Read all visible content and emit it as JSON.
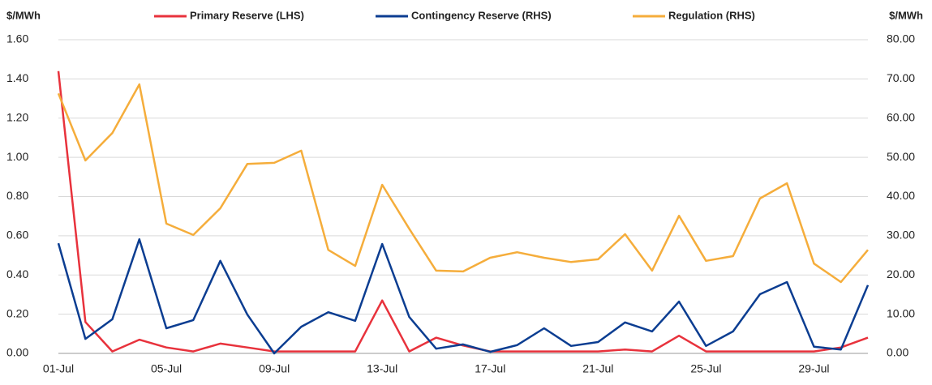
{
  "chart_data": {
    "type": "line",
    "y_label": "$/MWh",
    "y2_label": "$/MWh",
    "categories": [
      "01-Jul",
      null,
      null,
      null,
      "05-Jul",
      null,
      null,
      null,
      "09-Jul",
      null,
      null,
      null,
      "13-Jul",
      null,
      null,
      null,
      "17-Jul",
      null,
      null,
      null,
      "21-Jul",
      null,
      null,
      null,
      "25-Jul",
      null,
      null,
      null,
      "29-Jul",
      null,
      null
    ],
    "series": [
      {
        "name": "Primary Reserve (LHS)",
        "color": "#e8323c",
        "axis": "y",
        "values": [
          1.44,
          0.16,
          0.01,
          0.07,
          0.03,
          0.01,
          0.05,
          0.03,
          0.01,
          0.01,
          0.01,
          0.01,
          0.27,
          0.01,
          0.08,
          0.04,
          0.01,
          0.01,
          0.01,
          0.01,
          0.01,
          0.02,
          0.01,
          0.09,
          0.01,
          0.01,
          0.01,
          0.01,
          0.01,
          0.03,
          0.08
        ]
      },
      {
        "name": "Contingency Reserve (RHS)",
        "color": "#0b3d91",
        "axis": "y2",
        "values": [
          28.1,
          3.7,
          8.7,
          29.1,
          6.4,
          8.5,
          23.6,
          9.9,
          0,
          6.8,
          10.5,
          8.3,
          27.9,
          9.3,
          1.2,
          2.3,
          0.4,
          2.1,
          6.4,
          1.9,
          2.9,
          7.9,
          5.6,
          13.2,
          1.9,
          5.6,
          15.1,
          18.2,
          1.7,
          1.0,
          17.4
        ]
      },
      {
        "name": "Regulation (RHS)",
        "color": "#f5ad3b",
        "axis": "y2",
        "values": [
          66.3,
          49.2,
          56.2,
          68.6,
          33.1,
          30.2,
          37.0,
          48.3,
          48.6,
          51.7,
          26.4,
          22.3,
          43.0,
          31.8,
          21.1,
          20.9,
          24.4,
          25.8,
          24.4,
          23.3,
          24.0,
          30.4,
          21.1,
          35.1,
          23.6,
          24.8,
          39.5,
          43.4,
          22.9,
          18.2,
          26.4
        ]
      }
    ],
    "ylim": [
      0,
      1.6
    ],
    "yticks": [
      {
        "value": 0,
        "label": "0.00"
      },
      {
        "value": 0.2,
        "label": "0.20"
      },
      {
        "value": 0.4,
        "label": "0.40"
      },
      {
        "value": 0.6,
        "label": "0.60"
      },
      {
        "value": 0.8,
        "label": "0.80"
      },
      {
        "value": 1.0,
        "label": "1.00"
      },
      {
        "value": 1.2,
        "label": "1.20"
      },
      {
        "value": 1.4,
        "label": "1.40"
      },
      {
        "value": 1.6,
        "label": "1.60"
      }
    ],
    "y2lim": [
      0,
      80
    ],
    "y2ticks": [
      {
        "value": 0,
        "label": "0.00"
      },
      {
        "value": 10,
        "label": "10.00"
      },
      {
        "value": 20,
        "label": "20.00"
      },
      {
        "value": 30,
        "label": "30.00"
      },
      {
        "value": 40,
        "label": "40.00"
      },
      {
        "value": 50,
        "label": "50.00"
      },
      {
        "value": 60,
        "label": "60.00"
      },
      {
        "value": 70,
        "label": "70.00"
      },
      {
        "value": 80,
        "label": "80.00"
      }
    ],
    "grid": true,
    "legend": "top"
  }
}
